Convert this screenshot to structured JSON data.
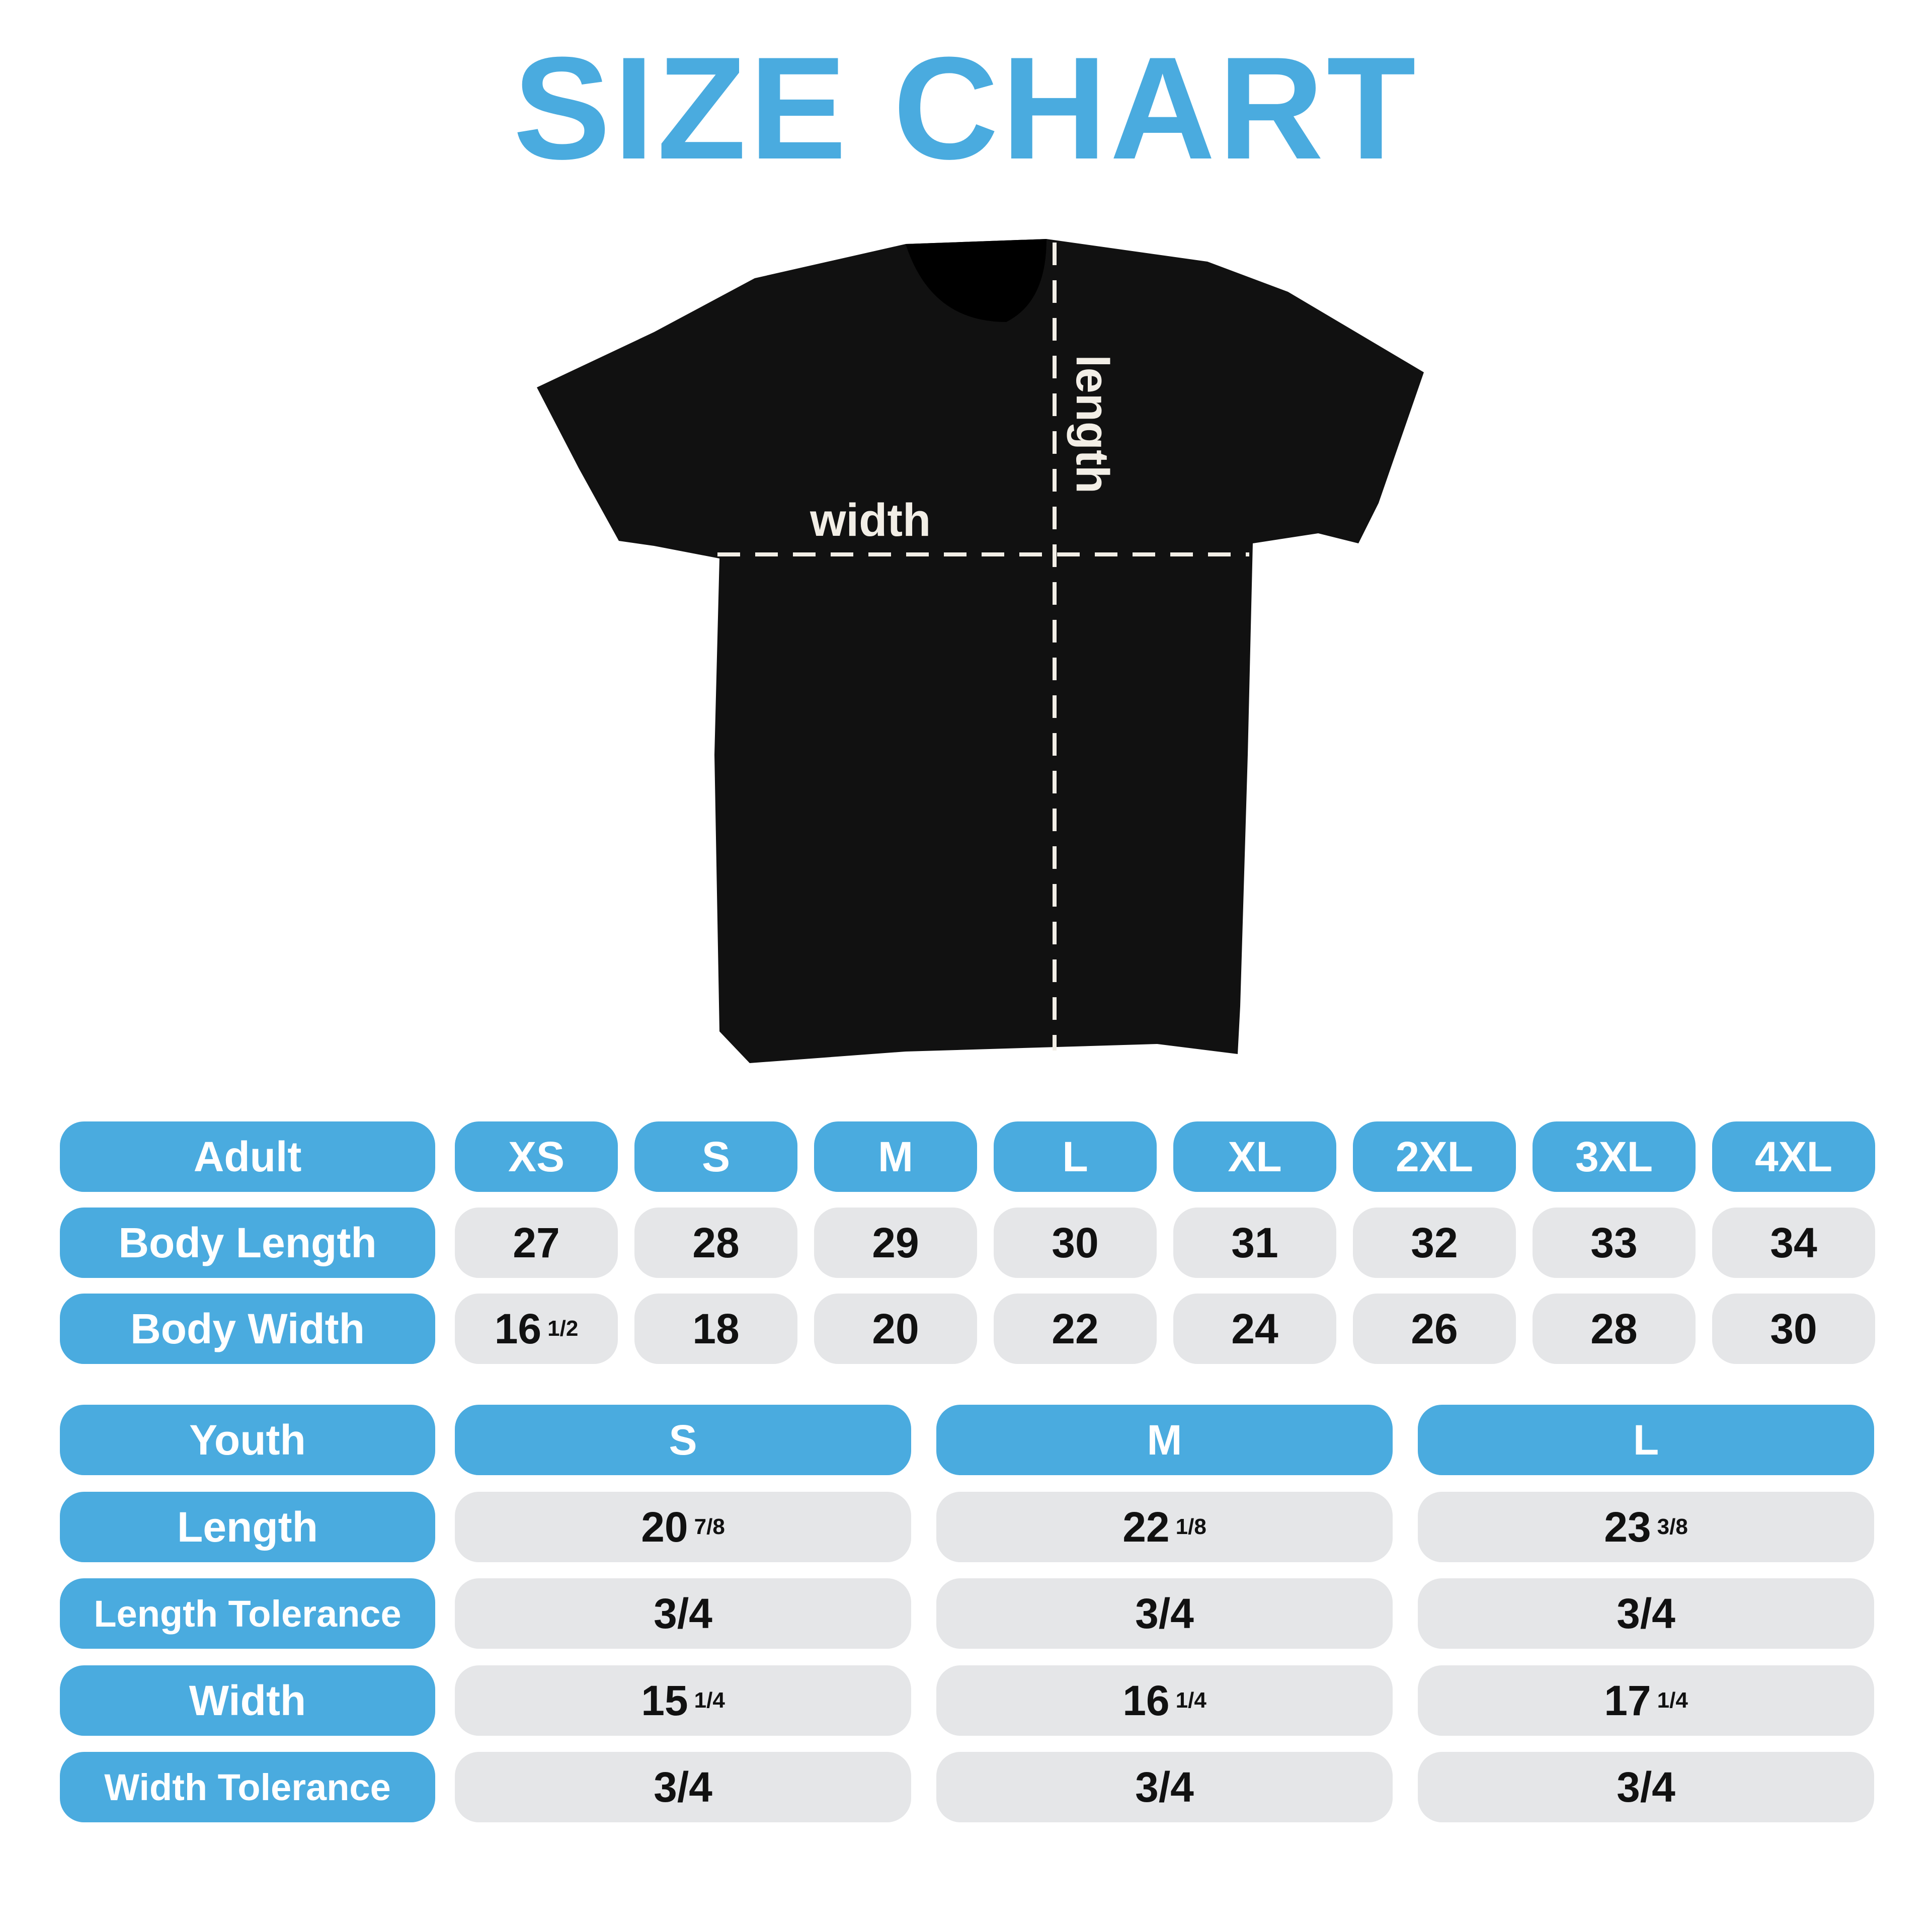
{
  "title": "SIZE CHART",
  "diagram": {
    "width_label": "width",
    "length_label": "length",
    "shirt_color": "#111111",
    "line_color": "#F2EEE6"
  },
  "colors": {
    "accent": "#4AABDF",
    "cell": "#E5E6E8"
  },
  "adult": {
    "header": "Adult",
    "sizes": [
      "XS",
      "S",
      "M",
      "L",
      "XL",
      "2XL",
      "3XL",
      "4XL"
    ],
    "rows": [
      {
        "label": "Body Length",
        "values": [
          {
            "whole": "27"
          },
          {
            "whole": "28"
          },
          {
            "whole": "29"
          },
          {
            "whole": "30"
          },
          {
            "whole": "31"
          },
          {
            "whole": "32"
          },
          {
            "whole": "33"
          },
          {
            "whole": "34"
          }
        ]
      },
      {
        "label": "Body Width",
        "values": [
          {
            "whole": "16",
            "frac": "1/2"
          },
          {
            "whole": "18"
          },
          {
            "whole": "20"
          },
          {
            "whole": "22"
          },
          {
            "whole": "24"
          },
          {
            "whole": "26"
          },
          {
            "whole": "28"
          },
          {
            "whole": "30"
          }
        ]
      }
    ]
  },
  "youth": {
    "header": "Youth",
    "sizes": [
      "S",
      "M",
      "L"
    ],
    "rows": [
      {
        "label": "Length",
        "values": [
          {
            "whole": "20",
            "frac": "7/8"
          },
          {
            "whole": "22",
            "frac": "1/8"
          },
          {
            "whole": "23",
            "frac": "3/8"
          }
        ]
      },
      {
        "label": "Length Tolerance",
        "values": [
          {
            "whole": "3/4"
          },
          {
            "whole": "3/4"
          },
          {
            "whole": "3/4"
          }
        ]
      },
      {
        "label": "Width",
        "values": [
          {
            "whole": "15",
            "frac": "1/4"
          },
          {
            "whole": "16",
            "frac": "1/4"
          },
          {
            "whole": "17",
            "frac": "1/4"
          }
        ]
      },
      {
        "label": "Width Tolerance",
        "values": [
          {
            "whole": "3/4"
          },
          {
            "whole": "3/4"
          },
          {
            "whole": "3/4"
          }
        ]
      }
    ]
  }
}
